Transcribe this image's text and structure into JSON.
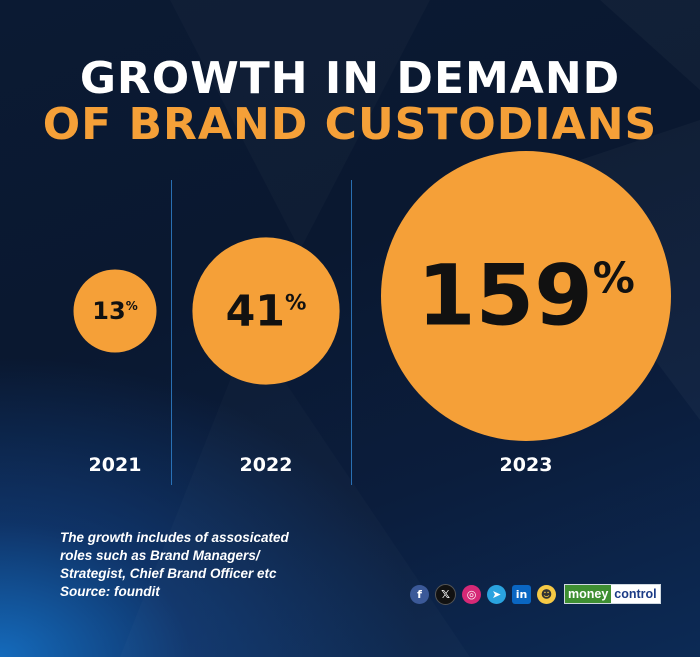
{
  "title": {
    "line1": "GROWTH IN DEMAND",
    "line2": "OF BRAND CUSTODIANS"
  },
  "colors": {
    "accent": "#f5a038",
    "background": "#0b1a33",
    "divider": "#2f7fc9",
    "text": "#ffffff"
  },
  "chart_data": {
    "type": "bubble",
    "title": "GROWTH IN DEMAND OF BRAND CUSTODIANS",
    "unit": "%",
    "categories": [
      "2021",
      "2022",
      "2023"
    ],
    "values": [
      13,
      41,
      159
    ]
  },
  "footnote": {
    "line1": "The growth includes of assosicated",
    "line2": "roles such as Brand Managers/",
    "line3": "Strategist, Chief Brand Officer etc",
    "source": "Source: foundit"
  },
  "social": {
    "facebook": "f",
    "x": "𝕏",
    "instagram": "◎",
    "telegram": "➤",
    "linkedin": "in",
    "koo": "☻"
  },
  "brand": {
    "part1": "money",
    "part2": "control"
  }
}
